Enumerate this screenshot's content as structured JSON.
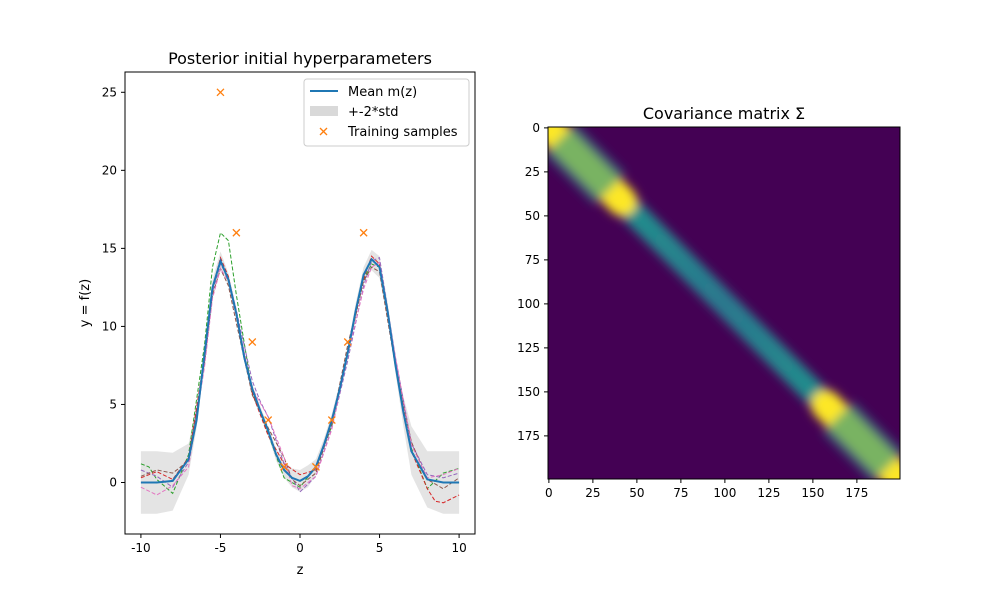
{
  "chart_data": [
    {
      "type": "line",
      "title": "Posterior initial hyperparameters",
      "xlabel": "z",
      "ylabel": "y = f(z)",
      "xlim": [
        -11,
        11
      ],
      "ylim": [
        -3.3,
        26.3
      ],
      "xticks": [
        -10,
        -5,
        0,
        5,
        10
      ],
      "yticks": [
        0,
        5,
        10,
        15,
        20,
        25
      ],
      "legend_position": "top-right",
      "legend": {
        "mean": "Mean m(z)",
        "band": "+-2*std",
        "samples": "Training samples"
      },
      "colors": {
        "mean": "#1f77b4",
        "band": "#d9d9d9",
        "samples": "#ff7f0e",
        "draws": [
          "#2ca02c",
          "#d62728",
          "#9467bd",
          "#8c564b",
          "#e377c2"
        ]
      },
      "mean_curve": {
        "x": [
          -10,
          -9,
          -8,
          -7,
          -6.5,
          -6,
          -5.5,
          -5,
          -4.5,
          -4,
          -3.5,
          -3,
          -2.5,
          -2,
          -1.5,
          -1,
          -0.5,
          0,
          0.5,
          1,
          1.5,
          2,
          2.5,
          3,
          3.5,
          4,
          4.5,
          5,
          5.5,
          6,
          6.5,
          7,
          8,
          9,
          10
        ],
        "y": [
          0,
          0,
          0.1,
          1.5,
          4,
          8.2,
          12.5,
          14.2,
          13,
          10.8,
          8,
          6,
          4.6,
          3.3,
          1.8,
          0.8,
          0.3,
          0.1,
          0.4,
          1,
          2.4,
          4,
          6,
          8.3,
          11,
          13.3,
          14.3,
          13.8,
          11,
          7.5,
          4.5,
          2,
          0.2,
          0,
          0
        ]
      },
      "band": {
        "x": [
          -10,
          -9,
          -8,
          -7,
          -6.5,
          -6,
          -5.5,
          -5,
          -4.5,
          -4,
          -3.5,
          -3,
          -2.5,
          -2,
          -1.5,
          -1,
          -0.5,
          0,
          0.5,
          1,
          1.5,
          2,
          2.5,
          3,
          3.5,
          4,
          4.5,
          5,
          5.5,
          6,
          6.5,
          7,
          8,
          9,
          10
        ],
        "lower": [
          -2,
          -2,
          -1.8,
          0.5,
          3.5,
          7.7,
          12,
          13.6,
          12.6,
          10.4,
          7.7,
          5.7,
          4.3,
          3,
          1.4,
          0.3,
          -0.3,
          -0.6,
          -0.3,
          0.5,
          2,
          3.6,
          5.6,
          7.9,
          10.5,
          12.8,
          13.6,
          13.1,
          10.5,
          7,
          3.6,
          0.5,
          -1.6,
          -2,
          -2
        ],
        "upper": [
          2,
          2,
          1.9,
          2.5,
          4.8,
          8.8,
          13,
          14.8,
          13.4,
          11.2,
          8.3,
          6.3,
          4.9,
          3.6,
          2.2,
          1.4,
          0.9,
          0.8,
          1.1,
          1.5,
          2.8,
          4.4,
          6.4,
          8.7,
          11.5,
          13.8,
          14.9,
          14.5,
          11.6,
          8,
          5.5,
          3.6,
          2,
          2,
          2
        ]
      },
      "posterior_draws": [
        {
          "x": [
            -10,
            -9.5,
            -9,
            -8,
            -7,
            -6,
            -5.5,
            -5,
            -4.5,
            -4,
            -3,
            -2,
            -1,
            0,
            1,
            2,
            3,
            4,
            4.5,
            5,
            6,
            7,
            8,
            9,
            10
          ],
          "y": [
            1.2,
            1,
            0.2,
            -0.7,
            1.8,
            8.8,
            13.8,
            16,
            15.5,
            12,
            5.8,
            3.1,
            0.3,
            -0.3,
            1,
            3.6,
            8.4,
            13,
            14,
            13.8,
            7.8,
            2.2,
            -0.4,
            0.6,
            0.9
          ]
        },
        {
          "x": [
            -10,
            -9,
            -8,
            -7,
            -6,
            -5.5,
            -5,
            -4.5,
            -4,
            -3,
            -2,
            -1,
            0,
            1,
            2,
            3,
            4,
            4.5,
            5,
            6,
            7,
            8,
            8.5,
            9,
            10
          ],
          "y": [
            0.3,
            0.7,
            0.2,
            1.6,
            8,
            12.4,
            14.4,
            13.2,
            10.8,
            5.7,
            3,
            1.2,
            0.5,
            0.8,
            3.8,
            8.4,
            13,
            14.5,
            14,
            7.5,
            2,
            -0.4,
            -1.2,
            -1.3,
            -0.8
          ]
        },
        {
          "x": [
            -10,
            -9,
            -8,
            -7,
            -6,
            -5.5,
            -5,
            -4.5,
            -4,
            -3,
            -2.5,
            -2,
            -1,
            0,
            1,
            2,
            3,
            4,
            4.5,
            5,
            6,
            7,
            8,
            9,
            10
          ],
          "y": [
            0.8,
            0.4,
            -0.3,
            1.3,
            7.8,
            12.2,
            14,
            13.1,
            11,
            6.5,
            5.2,
            4.2,
            1.2,
            -0.6,
            0.4,
            3.5,
            7.8,
            12.6,
            14.2,
            14.4,
            8,
            2.5,
            0.5,
            0.3,
            0.6
          ]
        },
        {
          "x": [
            -10,
            -9,
            -8,
            -7,
            -6,
            -5.5,
            -5,
            -4.5,
            -4,
            -3,
            -2,
            -1,
            -0.5,
            0,
            1,
            2,
            3,
            4,
            4.5,
            5,
            6,
            7,
            8,
            9,
            10
          ],
          "y": [
            0.4,
            0.8,
            0.6,
            1.4,
            7.6,
            12,
            13.7,
            12.6,
            10.2,
            5.6,
            3.5,
            1.6,
            0.2,
            -0.2,
            0.6,
            3.8,
            8.8,
            12.9,
            13.8,
            13.5,
            7.4,
            2.6,
            0.2,
            -0.4,
            0.3
          ]
        },
        {
          "x": [
            -10,
            -9,
            -8,
            -7,
            -6,
            -5.5,
            -5,
            -4.5,
            -4,
            -3,
            -2,
            -1,
            -0.5,
            0,
            1,
            2,
            3,
            4,
            4.5,
            5,
            6,
            7,
            8,
            9,
            10
          ],
          "y": [
            -0.3,
            -0.8,
            -0.2,
            1,
            7.4,
            11.8,
            13.7,
            12.9,
            10.6,
            6,
            4.2,
            1.6,
            -0.2,
            -0.4,
            0.4,
            3.4,
            8.2,
            12.4,
            13.8,
            14.1,
            8,
            2.4,
            0.3,
            0.5,
            0.9
          ]
        }
      ],
      "training_samples": {
        "x": [
          -5,
          -4,
          -3,
          -2,
          -1,
          1,
          2,
          3,
          4
        ],
        "y": [
          25,
          16,
          9,
          4,
          1,
          1,
          4,
          9,
          16
        ]
      }
    },
    {
      "type": "heatmap",
      "title": "Covariance matrix Σ",
      "size": 200,
      "xticks": [
        0,
        25,
        50,
        75,
        100,
        125,
        150,
        175
      ],
      "yticks": [
        0,
        25,
        50,
        75,
        100,
        125,
        150,
        175
      ],
      "colormap": "viridis",
      "structure": "band-diagonal covariance, high variance blocks near indices 0-45 and 155-200, medium along the diagonal in between"
    }
  ]
}
